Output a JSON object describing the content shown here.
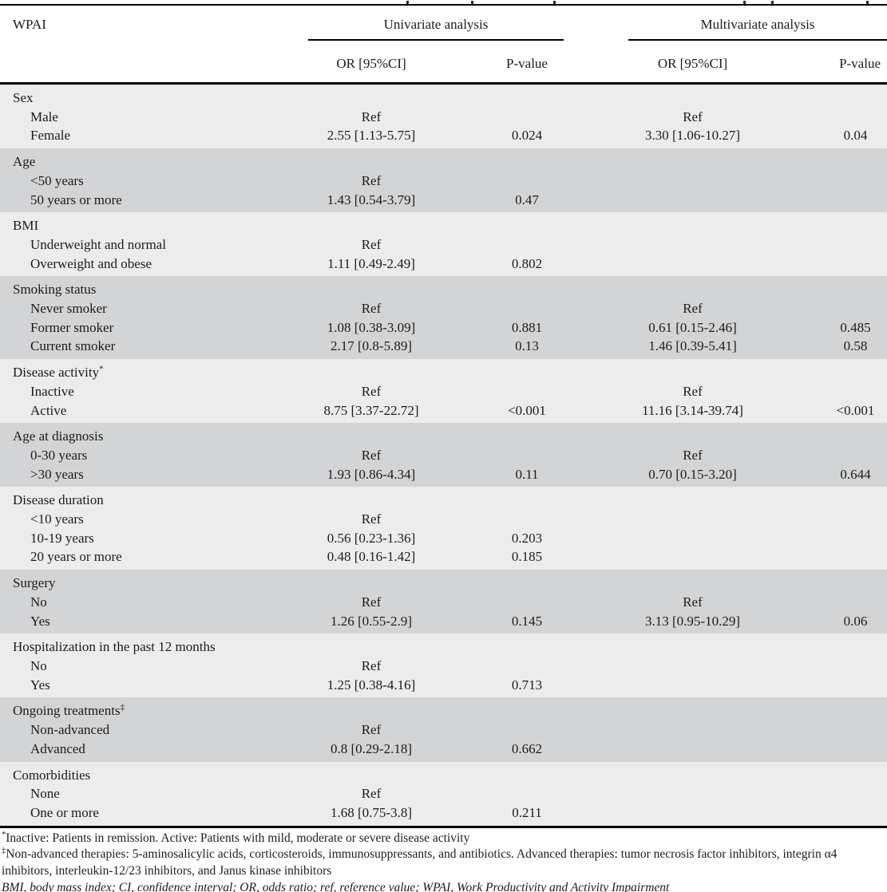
{
  "table": {
    "columns": {
      "label": "WPAI",
      "uni_or": "OR [95%CI]",
      "uni_p": "P-value",
      "multi_or": "OR [95%CI]",
      "multi_p": "P-value"
    },
    "span_headers": {
      "univariate": "Univariate analysis",
      "multivariate": "Multivariate analysis"
    },
    "colors": {
      "band_light": "#ececec",
      "band_dark": "#d3d4d6",
      "rule": "#000000"
    },
    "groups": [
      {
        "label": "Sex",
        "rows": [
          {
            "label": "Male",
            "uni_or": "Ref",
            "uni_p": "",
            "multi_or": "Ref",
            "multi_p": ""
          },
          {
            "label": "Female",
            "uni_or": "2.55 [1.13-5.75]",
            "uni_p": "0.024",
            "multi_or": "3.30 [1.06-10.27]",
            "multi_p": "0.04"
          }
        ]
      },
      {
        "label": "Age",
        "rows": [
          {
            "label": "<50 years",
            "uni_or": "Ref",
            "uni_p": "",
            "multi_or": "",
            "multi_p": ""
          },
          {
            "label": "50 years or more",
            "uni_or": "1.43 [0.54-3.79]",
            "uni_p": "0.47",
            "multi_or": "",
            "multi_p": ""
          }
        ]
      },
      {
        "label": "BMI",
        "rows": [
          {
            "label": "Underweight and normal",
            "uni_or": "Ref",
            "uni_p": "",
            "multi_or": "",
            "multi_p": ""
          },
          {
            "label": "Overweight and obese",
            "uni_or": "1.11 [0.49-2.49]",
            "uni_p": "0.802",
            "multi_or": "",
            "multi_p": ""
          }
        ]
      },
      {
        "label": "Smoking status",
        "rows": [
          {
            "label": "Never smoker",
            "uni_or": "Ref",
            "uni_p": "",
            "multi_or": "Ref",
            "multi_p": ""
          },
          {
            "label": "Former smoker",
            "uni_or": "1.08 [0.38-3.09]",
            "uni_p": "0.881",
            "multi_or": "0.61 [0.15-2.46]",
            "multi_p": "0.485"
          },
          {
            "label": "Current smoker",
            "uni_or": "2.17 [0.8-5.89]",
            "uni_p": "0.13",
            "multi_or": "1.46 [0.39-5.41]",
            "multi_p": "0.58"
          }
        ]
      },
      {
        "label": "Disease activity",
        "sup": "*",
        "rows": [
          {
            "label": "Inactive",
            "uni_or": "Ref",
            "uni_p": "",
            "multi_or": "Ref",
            "multi_p": ""
          },
          {
            "label": "Active",
            "uni_or": "8.75 [3.37-22.72]",
            "uni_p": "<0.001",
            "multi_or": "11.16 [3.14-39.74]",
            "multi_p": "<0.001"
          }
        ]
      },
      {
        "label": "Age at diagnosis",
        "rows": [
          {
            "label": "0-30 years",
            "uni_or": "Ref",
            "uni_p": "",
            "multi_or": "Ref",
            "multi_p": ""
          },
          {
            "label": ">30 years",
            "uni_or": "1.93 [0.86-4.34]",
            "uni_p": "0.11",
            "multi_or": "0.70 [0.15-3.20]",
            "multi_p": "0.644"
          }
        ]
      },
      {
        "label": "Disease duration",
        "rows": [
          {
            "label": "<10 years",
            "uni_or": "Ref",
            "uni_p": "",
            "multi_or": "",
            "multi_p": ""
          },
          {
            "label": "10-19 years",
            "uni_or": "0.56 [0.23-1.36]",
            "uni_p": "0.203",
            "multi_or": "",
            "multi_p": ""
          },
          {
            "label": "20 years or more",
            "uni_or": "0.48 [0.16-1.42]",
            "uni_p": "0.185",
            "multi_or": "",
            "multi_p": ""
          }
        ]
      },
      {
        "label": "Surgery",
        "rows": [
          {
            "label": "No",
            "uni_or": "Ref",
            "uni_p": "",
            "multi_or": "Ref",
            "multi_p": ""
          },
          {
            "label": "Yes",
            "uni_or": "1.26 [0.55-2.9]",
            "uni_p": "0.145",
            "multi_or": "3.13 [0.95-10.29]",
            "multi_p": "0.06"
          }
        ]
      },
      {
        "label": "Hospitalization in the past 12 months",
        "rows": [
          {
            "label": "No",
            "uni_or": "Ref",
            "uni_p": "",
            "multi_or": "",
            "multi_p": ""
          },
          {
            "label": "Yes",
            "uni_or": "1.25 [0.38-4.16]",
            "uni_p": "0.713",
            "multi_or": "",
            "multi_p": ""
          }
        ]
      },
      {
        "label": "Ongoing treatments",
        "sup": "‡",
        "rows": [
          {
            "label": "Non-advanced",
            "uni_or": "Ref",
            "uni_p": "",
            "multi_or": "",
            "multi_p": ""
          },
          {
            "label": "Advanced",
            "uni_or": "0.8 [0.29-2.18]",
            "uni_p": "0.662",
            "multi_or": "",
            "multi_p": ""
          }
        ]
      },
      {
        "label": "Comorbidities",
        "rows": [
          {
            "label": "None",
            "uni_or": "Ref",
            "uni_p": "",
            "multi_or": "",
            "multi_p": ""
          },
          {
            "label": "One or more",
            "uni_or": "1.68 [0.75-3.8]",
            "uni_p": "0.211",
            "multi_or": "",
            "multi_p": ""
          }
        ]
      }
    ],
    "footnotes": [
      {
        "marker": "*",
        "text": "Inactive: Patients in remission. Active: Patients with mild, moderate or severe disease activity"
      },
      {
        "marker": "‡",
        "text": "Non-advanced therapies: 5-aminosalicylic acids, corticosteroids, immunosuppressants, and antibiotics. Advanced therapies: tumor necrosis factor inhibitors, integrin α4 inhibitors, interleukin-12/23 inhibitors, and Janus kinase inhibitors"
      },
      {
        "marker": "",
        "text": "BMI, body mass index; CI, confidence interval; OR, odds ratio; ref, reference value; WPAI, Work Productivity and Activity Impairment"
      }
    ]
  }
}
